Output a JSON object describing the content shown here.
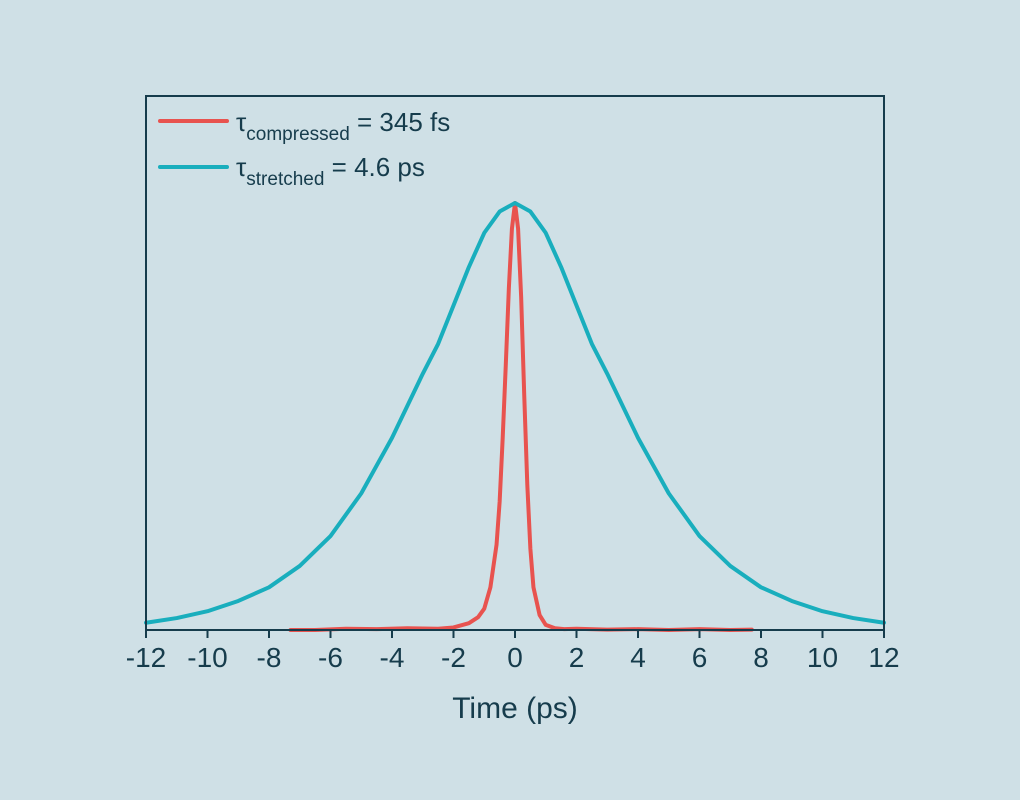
{
  "chart_data": {
    "type": "line",
    "title": "",
    "xlabel": "Time (ps)",
    "ylabel": "",
    "xlim": [
      -12,
      12
    ],
    "ylim": [
      0,
      1.05
    ],
    "y_ticks_shown": false,
    "grid": false,
    "x_ticks": [
      -12,
      -10,
      -8,
      -6,
      -4,
      -2,
      0,
      2,
      4,
      6,
      8,
      10,
      12
    ],
    "x_tick_labels": [
      "-12",
      "-10",
      "-8",
      "-6",
      "-4",
      "-2",
      "0",
      "2",
      "4",
      "6",
      "8",
      "10",
      "12"
    ],
    "legend_position": "top-left",
    "legend": [
      {
        "symbol": "τ",
        "subscript": "compressed",
        "value": " = 345 fs",
        "color": "#e8534f"
      },
      {
        "symbol": "τ",
        "subscript": "stretched",
        "value": " = 4.6 ps",
        "color": "#19aebd"
      }
    ],
    "series": [
      {
        "color": "#e8534f",
        "x": [
          -7.3,
          -6.5,
          -5.5,
          -4.5,
          -3.5,
          -2.5,
          -2.0,
          -1.5,
          -1.2,
          -1.0,
          -0.8,
          -0.6,
          -0.5,
          -0.4,
          -0.3,
          -0.2,
          -0.1,
          0.0,
          0.1,
          0.2,
          0.3,
          0.4,
          0.5,
          0.6,
          0.8,
          1.0,
          1.3,
          1.6,
          2.0,
          3.0,
          4.0,
          5.0,
          6.0,
          7.0,
          7.7
        ],
        "y": [
          0.0,
          0.0,
          0.003,
          0.002,
          0.004,
          0.003,
          0.006,
          0.016,
          0.03,
          0.05,
          0.1,
          0.2,
          0.3,
          0.45,
          0.62,
          0.8,
          0.94,
          1.0,
          0.94,
          0.78,
          0.55,
          0.34,
          0.19,
          0.1,
          0.035,
          0.012,
          0.004,
          0.002,
          0.003,
          0.001,
          0.002,
          0.0,
          0.002,
          0.0,
          0.001
        ]
      },
      {
        "color": "#19aebd",
        "x": [
          -12,
          -11,
          -10,
          -9,
          -8,
          -7,
          -6,
          -5,
          -4,
          -3,
          -2.5,
          -2,
          -1.5,
          -1,
          -0.5,
          0,
          0.5,
          1,
          1.5,
          2,
          2.5,
          3,
          4,
          5,
          6,
          7,
          8,
          9,
          10,
          11,
          12
        ],
        "y": [
          0.017,
          0.028,
          0.044,
          0.068,
          0.1,
          0.15,
          0.22,
          0.32,
          0.45,
          0.6,
          0.67,
          0.76,
          0.85,
          0.93,
          0.98,
          1.0,
          0.98,
          0.93,
          0.85,
          0.76,
          0.67,
          0.6,
          0.45,
          0.32,
          0.22,
          0.15,
          0.1,
          0.068,
          0.044,
          0.028,
          0.017
        ]
      }
    ]
  }
}
